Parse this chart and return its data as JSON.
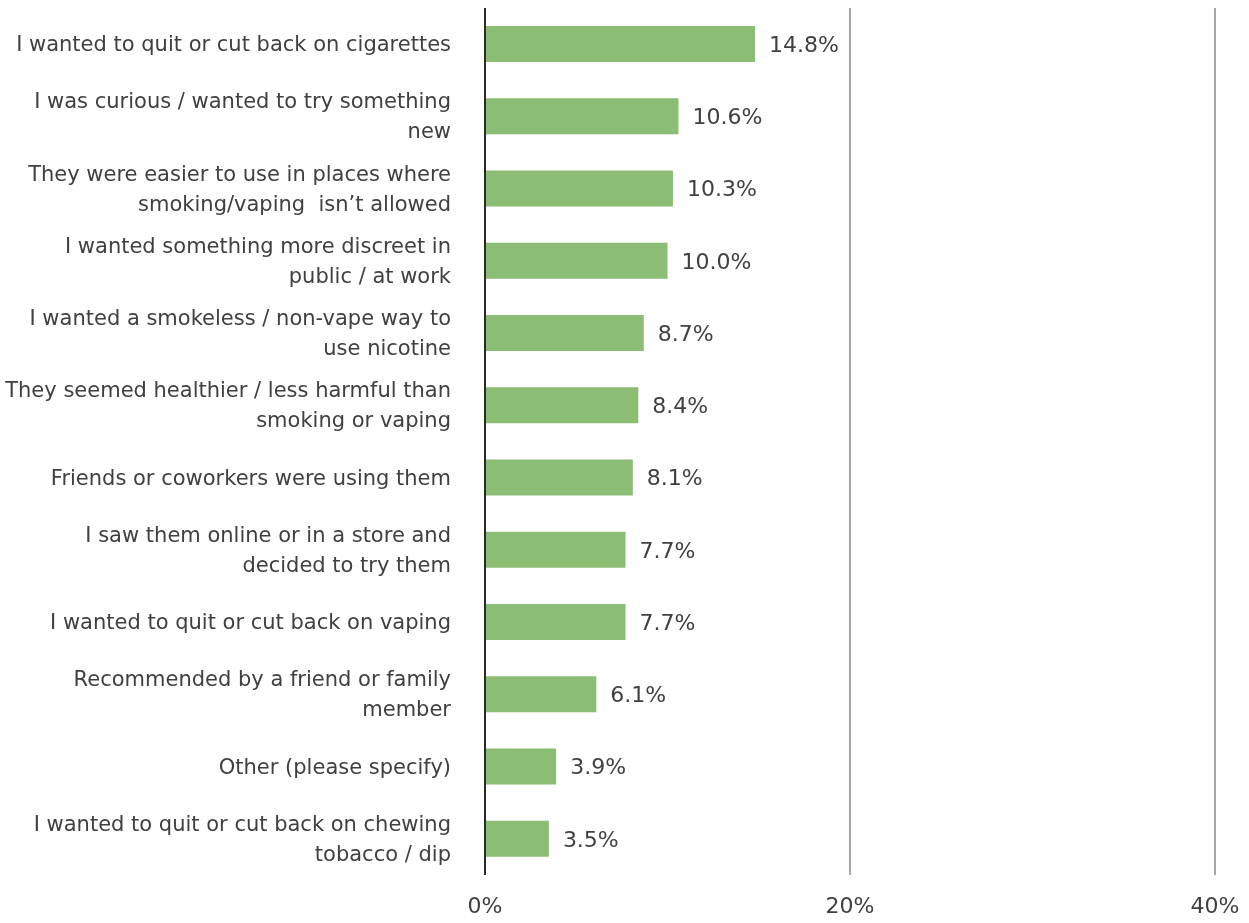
{
  "chart_data": {
    "type": "bar",
    "orientation": "horizontal",
    "categories": [
      "I wanted to quit or cut back on cigarettes",
      "I was curious / wanted to try something new",
      "They were easier to use in places where smoking/vaping  isn’t allowed",
      "I wanted something more discreet in public / at work",
      "I wanted a smokeless / non-vape way to use nicotine",
      "They seemed healthier / less harmful than smoking or vaping",
      "Friends or coworkers were using them",
      "I saw them online or in a store and decided to try them",
      "I wanted to quit or cut back on vaping",
      "Recommended by a friend or family member",
      "Other (please specify)",
      "I wanted to quit or cut back on chewing tobacco / dip"
    ],
    "values": [
      14.8,
      10.6,
      10.3,
      10.0,
      8.7,
      8.4,
      8.1,
      7.7,
      7.7,
      6.1,
      3.9,
      3.5
    ],
    "value_labels": [
      "14.8%",
      "10.6%",
      "10.3%",
      "10.0%",
      "8.7%",
      "8.4%",
      "8.1%",
      "7.7%",
      "7.7%",
      "6.1%",
      "3.9%",
      "3.5%"
    ],
    "color": "#8bbd74",
    "xlim": [
      0,
      40
    ],
    "xticks": [
      {
        "value": 0,
        "label": "0%"
      },
      {
        "value": 20,
        "label": "20%"
      },
      {
        "value": 40,
        "label": "40%"
      }
    ],
    "grid": "x"
  }
}
